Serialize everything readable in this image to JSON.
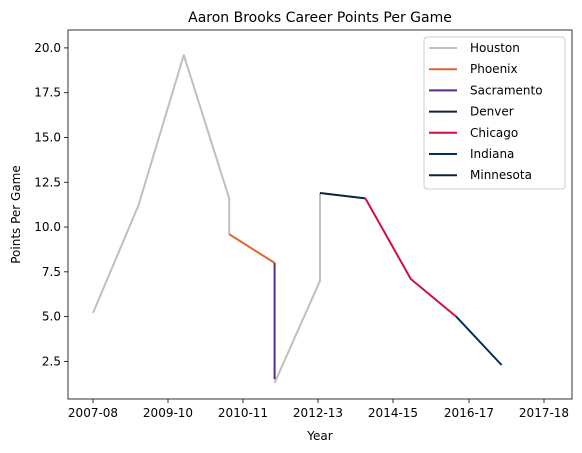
{
  "chart_data": {
    "type": "line",
    "title": "Aaron Brooks  Career Points Per Game",
    "xlabel": "Year",
    "ylabel": "Points Per Game",
    "categories": [
      "2007-08",
      "2008-09",
      "2009-10",
      "2010-11",
      "2011-12",
      "2012-13",
      "2013-14",
      "2014-15",
      "2015-16",
      "2016-17",
      "2017-18"
    ],
    "x_tick_labels": [
      "2007-08",
      "2009-10",
      "2010-11",
      "2012-13",
      "2014-15",
      "2016-17",
      "2017-18"
    ],
    "y_ticks": [
      "2.5",
      "5.0",
      "7.5",
      "10.0",
      "12.5",
      "15.0",
      "17.5",
      "20.0"
    ],
    "ylim": [
      0.4,
      21.0
    ],
    "grid": false,
    "legend_position": "top-right",
    "series": [
      {
        "name": "Houston",
        "color": "#bfbfbf",
        "segments": [
          [
            {
              "x": "2007-08",
              "y": 5.2
            },
            {
              "x": "2008-09",
              "y": 11.2
            },
            {
              "x": "2009-10",
              "y": 19.6
            },
            {
              "x": "2010-11",
              "y": 11.6
            },
            {
              "x": "2010-11",
              "y": 9.6
            }
          ],
          [
            {
              "x": "2011-12",
              "y": 1.3
            },
            {
              "x": "2012-13",
              "y": 7.0
            },
            {
              "x": "2012-13",
              "y": 11.9
            }
          ]
        ]
      },
      {
        "name": "Phoenix",
        "color": "#e5622b",
        "segments": [
          [
            {
              "x": "2010-11",
              "y": 9.6
            },
            {
              "x": "2011-12",
              "y": 8.0
            }
          ]
        ]
      },
      {
        "name": "Sacramento",
        "color": "#5a2d82",
        "segments": [
          [
            {
              "x": "2011-12",
              "y": 8.0
            },
            {
              "x": "2011-12",
              "y": 1.5
            }
          ]
        ]
      },
      {
        "name": "Denver",
        "color": "#0e2240",
        "segments": [
          [
            {
              "x": "2012-13",
              "y": 11.9
            },
            {
              "x": "2013-14",
              "y": 11.6
            }
          ]
        ]
      },
      {
        "name": "Chicago",
        "color": "#ce1141",
        "segments": [
          [
            {
              "x": "2013-14",
              "y": 11.6
            },
            {
              "x": "2014-15",
              "y": 7.1
            },
            {
              "x": "2015-16",
              "y": 5.0
            }
          ]
        ]
      },
      {
        "name": "Indiana",
        "color": "#002d62",
        "segments": [
          [
            {
              "x": "2015-16",
              "y": 5.0
            },
            {
              "x": "2016-17",
              "y": 2.3
            }
          ]
        ]
      },
      {
        "name": "Minnesota",
        "color": "#0c2340",
        "segments": []
      }
    ]
  }
}
